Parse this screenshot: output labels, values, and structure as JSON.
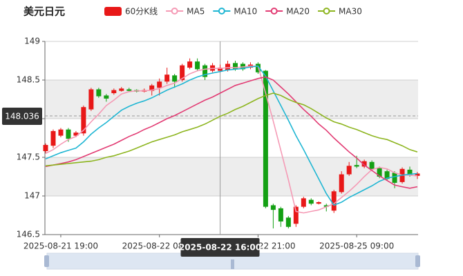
{
  "chart_data": {
    "type": "candlestick",
    "title": "美元日元",
    "categories": [
      null,
      null,
      "2025-08-21 19:00",
      null,
      null,
      null,
      null,
      null,
      null,
      null,
      null,
      null,
      null,
      null,
      null,
      "2025-08-22 08:00",
      null,
      null,
      null,
      null,
      null,
      null,
      null,
      "2025-08-22 16:00",
      null,
      null,
      null,
      null,
      "2025-08-22 21:00",
      null,
      null,
      null,
      null,
      null,
      null,
      null,
      null,
      null,
      null,
      null,
      null,
      "2025-08-25 09:00",
      null,
      null,
      null,
      null,
      null,
      null,
      null,
      null
    ],
    "candles": {
      "name": "60分K线",
      "up_color": "#e81818",
      "down_color": "#14a014",
      "open": [
        147.58,
        147.65,
        147.78,
        147.86,
        147.78,
        147.81,
        148.12,
        148.38,
        148.3,
        148.33,
        148.36,
        148.38,
        148.37,
        148.35,
        148.36,
        148.4,
        148.48,
        148.56,
        148.5,
        148.66,
        148.74,
        148.69,
        148.62,
        148.62,
        148.63,
        148.72,
        148.71,
        148.66,
        148.71,
        148.62,
        146.88,
        146.84,
        146.72,
        146.64,
        146.86,
        146.95,
        146.9,
        146.88,
        146.81,
        147.05,
        147.28,
        147.4,
        147.38,
        147.44,
        147.36,
        147.32,
        147.3,
        147.18,
        147.34,
        147.26
      ],
      "close": [
        147.66,
        147.84,
        147.86,
        147.74,
        147.82,
        148.15,
        148.38,
        148.29,
        148.26,
        148.37,
        148.39,
        148.36,
        148.35,
        148.37,
        148.43,
        148.48,
        148.57,
        148.48,
        148.69,
        148.74,
        148.64,
        148.54,
        148.69,
        148.66,
        148.71,
        148.64,
        148.64,
        148.7,
        148.6,
        146.86,
        146.82,
        146.67,
        146.6,
        146.86,
        146.97,
        146.9,
        146.92,
        146.86,
        147.06,
        147.28,
        147.39,
        147.38,
        147.45,
        147.35,
        147.25,
        147.22,
        147.17,
        147.35,
        147.27,
        147.29
      ],
      "low": [
        147.55,
        147.62,
        147.76,
        147.7,
        147.76,
        147.78,
        148.1,
        148.27,
        148.22,
        148.31,
        148.35,
        148.35,
        148.34,
        148.34,
        148.3,
        148.3,
        148.45,
        148.4,
        148.48,
        148.64,
        148.62,
        148.5,
        148.6,
        148.6,
        148.61,
        148.62,
        148.62,
        148.64,
        148.58,
        146.84,
        146.58,
        146.6,
        146.58,
        146.6,
        146.84,
        146.88,
        146.89,
        146.8,
        146.78,
        147.03,
        147.26,
        147.36,
        147.36,
        147.33,
        147.23,
        147.2,
        147.1,
        147.16,
        147.25,
        147.22
      ],
      "high": [
        147.68,
        147.86,
        147.88,
        147.88,
        147.84,
        148.17,
        148.4,
        148.4,
        148.32,
        148.39,
        148.41,
        148.4,
        148.38,
        148.39,
        148.45,
        148.52,
        148.66,
        148.58,
        148.71,
        148.78,
        148.78,
        148.71,
        148.72,
        148.7,
        148.75,
        148.75,
        148.73,
        148.73,
        148.73,
        148.63,
        146.9,
        146.86,
        146.74,
        146.88,
        146.99,
        146.97,
        146.93,
        146.9,
        147.08,
        147.32,
        147.44,
        147.52,
        147.47,
        147.46,
        147.38,
        147.34,
        147.32,
        147.37,
        147.38,
        147.31
      ]
    },
    "series": [
      {
        "name": "MA5",
        "color": "#f59ab5",
        "values": [
          147.55,
          147.6,
          147.67,
          147.73,
          147.77,
          147.85,
          147.96,
          148.06,
          148.17,
          148.24,
          148.32,
          148.35,
          148.36,
          148.36,
          148.37,
          148.39,
          148.43,
          148.46,
          148.52,
          148.58,
          148.62,
          148.64,
          148.65,
          148.65,
          148.66,
          148.66,
          148.67,
          148.68,
          148.68,
          148.33,
          147.97,
          147.59,
          147.21,
          146.8,
          146.78,
          146.8,
          146.82,
          146.86,
          146.9,
          146.98,
          147.06,
          147.15,
          147.25,
          147.34,
          147.37,
          147.35,
          147.3,
          147.27,
          147.27,
          147.26
        ]
      },
      {
        "name": "MA10",
        "color": "#1fb6d3",
        "values": [
          147.48,
          147.52,
          147.56,
          147.59,
          147.62,
          147.7,
          147.8,
          147.88,
          147.95,
          148.03,
          148.11,
          148.16,
          148.2,
          148.23,
          148.27,
          148.32,
          148.37,
          148.41,
          148.45,
          148.5,
          148.54,
          148.57,
          148.59,
          148.61,
          148.63,
          148.64,
          148.65,
          148.67,
          148.68,
          148.55,
          148.36,
          148.17,
          147.98,
          147.78,
          147.6,
          147.41,
          147.22,
          147.03,
          146.88,
          146.92,
          146.98,
          147.03,
          147.08,
          147.13,
          147.19,
          147.23,
          147.25,
          147.27,
          147.28,
          147.29
        ]
      },
      {
        "name": "MA20",
        "color": "#e23b73",
        "values": [
          147.38,
          147.4,
          147.42,
          147.44,
          147.47,
          147.51,
          147.55,
          147.59,
          147.63,
          147.67,
          147.72,
          147.77,
          147.81,
          147.86,
          147.9,
          147.95,
          148.0,
          148.04,
          148.09,
          148.14,
          148.19,
          148.24,
          148.28,
          148.33,
          148.38,
          148.43,
          148.46,
          148.49,
          148.52,
          148.54,
          148.5,
          148.41,
          148.32,
          148.22,
          148.12,
          148.03,
          147.93,
          147.85,
          147.75,
          147.66,
          147.57,
          147.49,
          147.4,
          147.33,
          147.26,
          147.2,
          147.14,
          147.12,
          147.1,
          147.12
        ]
      },
      {
        "name": "MA30",
        "color": "#8db51f",
        "values": [
          147.39,
          147.4,
          147.41,
          147.42,
          147.43,
          147.44,
          147.45,
          147.47,
          147.5,
          147.52,
          147.55,
          147.58,
          147.62,
          147.66,
          147.7,
          147.73,
          147.76,
          147.79,
          147.83,
          147.86,
          147.89,
          147.93,
          147.98,
          148.03,
          148.07,
          148.12,
          148.16,
          148.21,
          148.26,
          148.3,
          148.33,
          148.3,
          148.25,
          148.21,
          148.18,
          148.13,
          148.07,
          148.01,
          147.96,
          147.93,
          147.89,
          147.86,
          147.82,
          147.78,
          147.75,
          147.73,
          147.69,
          147.65,
          147.6,
          147.57
        ]
      }
    ],
    "ylim": [
      146.5,
      149
    ],
    "yticks": [
      146.5,
      147,
      147.5,
      148,
      148.5,
      149
    ],
    "split_area": true,
    "legend": "top",
    "crosshair": {
      "x": "2025-08-22 16:00",
      "y": 148.036
    }
  }
}
